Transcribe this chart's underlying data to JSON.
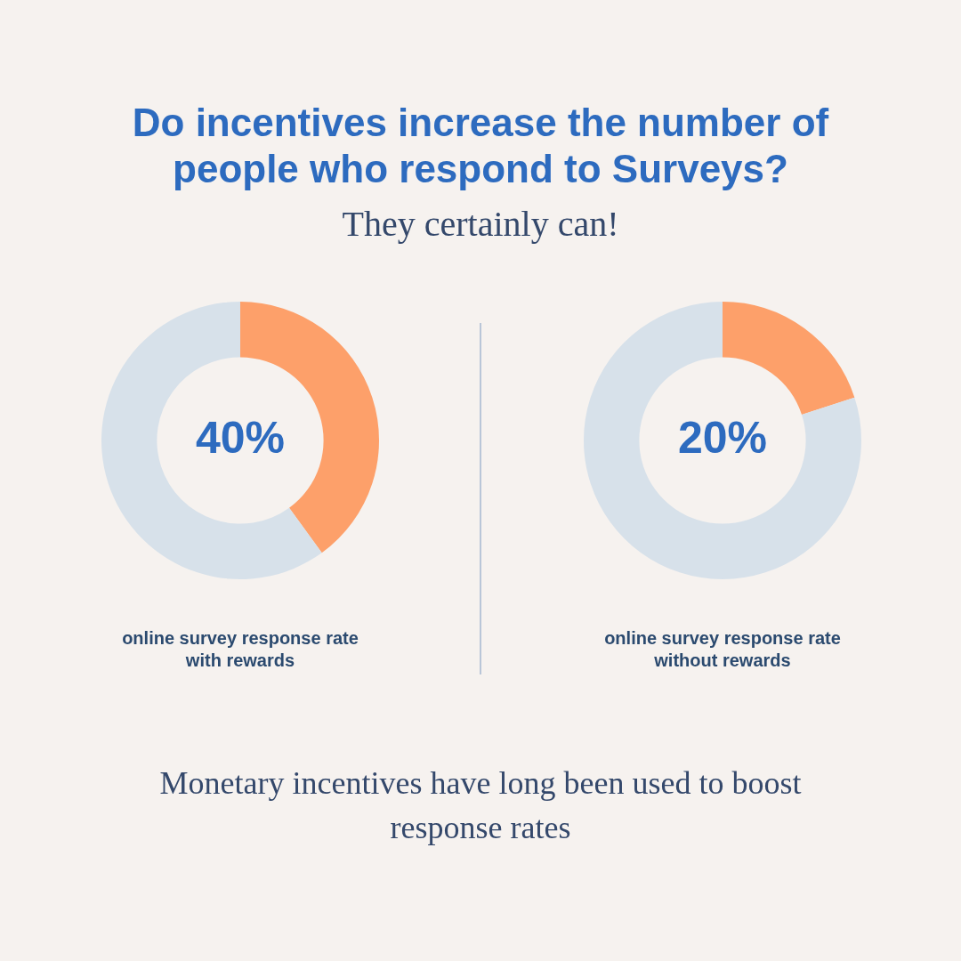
{
  "chart_data": [
    {
      "type": "donut",
      "title": "Do incentives increase the number of people who respond to Surveys?",
      "subtitle": "They certainly can!",
      "categories": [
        null,
        null
      ],
      "values": [
        40,
        60
      ],
      "colors": [
        "#fda06a",
        "#d7e1ea"
      ],
      "value_labels": [
        "40%",
        null
      ],
      "xlabel": "online survey response rate with rewards"
    },
    {
      "type": "donut",
      "categories": [
        null,
        null
      ],
      "values": [
        20,
        80
      ],
      "colors": [
        "#fda06a",
        "#d7e1ea"
      ],
      "value_labels": [
        "20%",
        null
      ],
      "xlabel": "online survey response rate without rewards",
      "annotations": [
        "Monetary incentives have long been used to boost response rates"
      ]
    }
  ]
}
